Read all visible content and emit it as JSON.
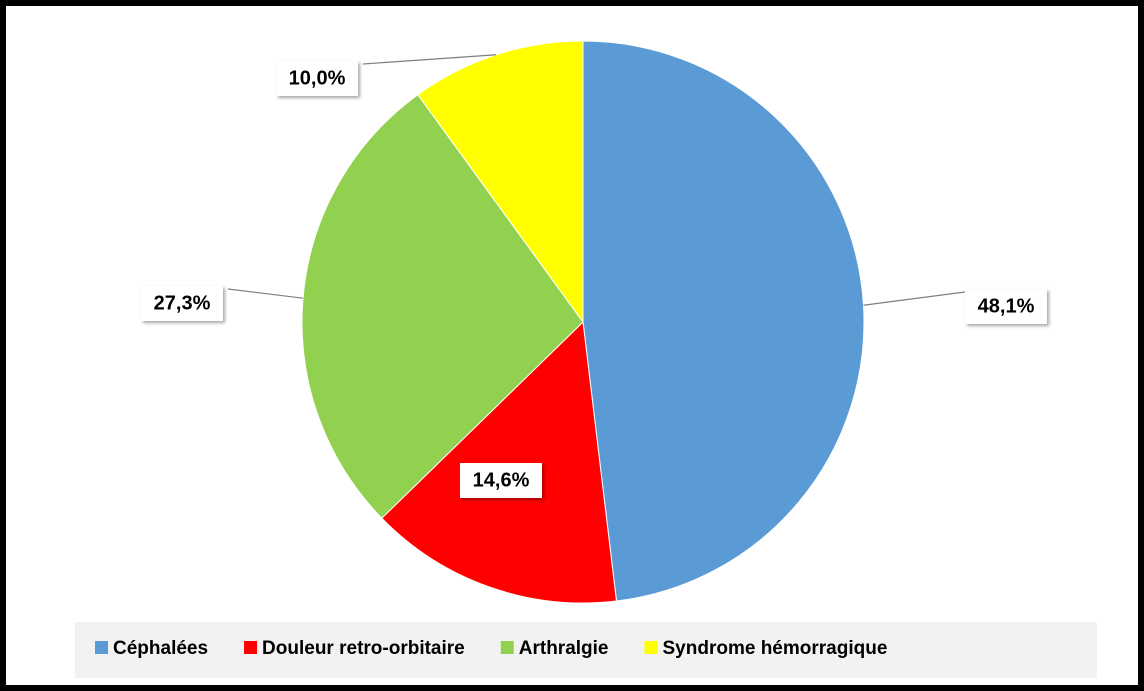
{
  "chart_data": {
    "type": "pie",
    "categories": [
      "Céphalées",
      "Douleur retro-orbitaire",
      "Arthralgie",
      "Syndrome hémorragique"
    ],
    "values": [
      48.1,
      14.6,
      27.3,
      10.0
    ],
    "value_labels": [
      "48,1%",
      "14,6%",
      "27,3%",
      "10,0%"
    ],
    "colors": [
      "#5b9bd5",
      "#ff0000",
      "#92d050",
      "#ffff00"
    ],
    "legend": "bottom"
  }
}
